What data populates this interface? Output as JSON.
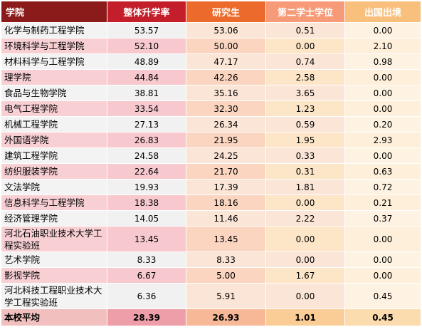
{
  "headers": [
    "学院",
    "整体升学率",
    "研究生",
    "第二学士学位",
    "出国出境"
  ],
  "rows": [
    {
      "name": "化学与制药工程学院",
      "overall": "53.57",
      "grad": "53.06",
      "second": "0.51",
      "abroad": "0.00"
    },
    {
      "name": "环境科学与工程学院",
      "overall": "52.10",
      "grad": "50.00",
      "second": "0.00",
      "abroad": "2.10"
    },
    {
      "name": "材料科学与工程学院",
      "overall": "48.89",
      "grad": "47.17",
      "second": "0.74",
      "abroad": "0.98"
    },
    {
      "name": "理学院",
      "overall": "44.84",
      "grad": "42.26",
      "second": "2.58",
      "abroad": "0.00"
    },
    {
      "name": "食品与生物学院",
      "overall": "38.81",
      "grad": "35.16",
      "second": "3.65",
      "abroad": "0.00"
    },
    {
      "name": "电气工程学院",
      "overall": "33.54",
      "grad": "32.30",
      "second": "1.23",
      "abroad": "0.00"
    },
    {
      "name": "机械工程学院",
      "overall": "27.13",
      "grad": "26.34",
      "second": "0.59",
      "abroad": "0.20"
    },
    {
      "name": "外国语学院",
      "overall": "26.83",
      "grad": "21.95",
      "second": "1.95",
      "abroad": "2.93"
    },
    {
      "name": "建筑工程学院",
      "overall": "24.58",
      "grad": "24.25",
      "second": "0.33",
      "abroad": "0.00"
    },
    {
      "name": "纺织服装学院",
      "overall": "22.64",
      "grad": "21.70",
      "second": "0.31",
      "abroad": "0.63"
    },
    {
      "name": "文法学院",
      "overall": "19.93",
      "grad": "17.39",
      "second": "1.81",
      "abroad": "0.72"
    },
    {
      "name": "信息科学与工程学院",
      "overall": "18.38",
      "grad": "18.16",
      "second": "0.00",
      "abroad": "0.21"
    },
    {
      "name": "经济管理学院",
      "overall": "14.05",
      "grad": "11.46",
      "second": "2.22",
      "abroad": "0.37"
    },
    {
      "name": "河北石油职业技术大学工程实验班",
      "overall": "13.45",
      "grad": "13.45",
      "second": "0.00",
      "abroad": "0.00"
    },
    {
      "name": "艺术学院",
      "overall": "8.33",
      "grad": "8.33",
      "second": "0.00",
      "abroad": "0.00"
    },
    {
      "name": "影视学院",
      "overall": "6.67",
      "grad": "5.00",
      "second": "1.67",
      "abroad": "0.00"
    },
    {
      "name": "河北科技工程职业技术大学工程实验班",
      "overall": "6.36",
      "grad": "5.91",
      "second": "0.00",
      "abroad": "0.45"
    }
  ],
  "average": {
    "name": "本校平均",
    "overall": "28.39",
    "grad": "26.93",
    "second": "1.01",
    "abroad": "0.45"
  },
  "colors": {
    "header": [
      "#8b1a1a",
      "#c41e2a",
      "#ec6a2b",
      "#f79a78",
      "#f9c07d"
    ],
    "odd": [
      "#f3f3f3",
      "#f1f1f1",
      "#fbe5d6",
      "#fbe5d6",
      "#fef3e2"
    ],
    "even": [
      "#f8d0d4",
      "#f7c9cf",
      "#fbd5c0",
      "#fde6c7",
      "#fdefd9"
    ],
    "avg": [
      "#f2bfbf",
      "#ed9ea8",
      "#f6b896",
      "#fbcd96",
      "#fbdcae"
    ]
  }
}
